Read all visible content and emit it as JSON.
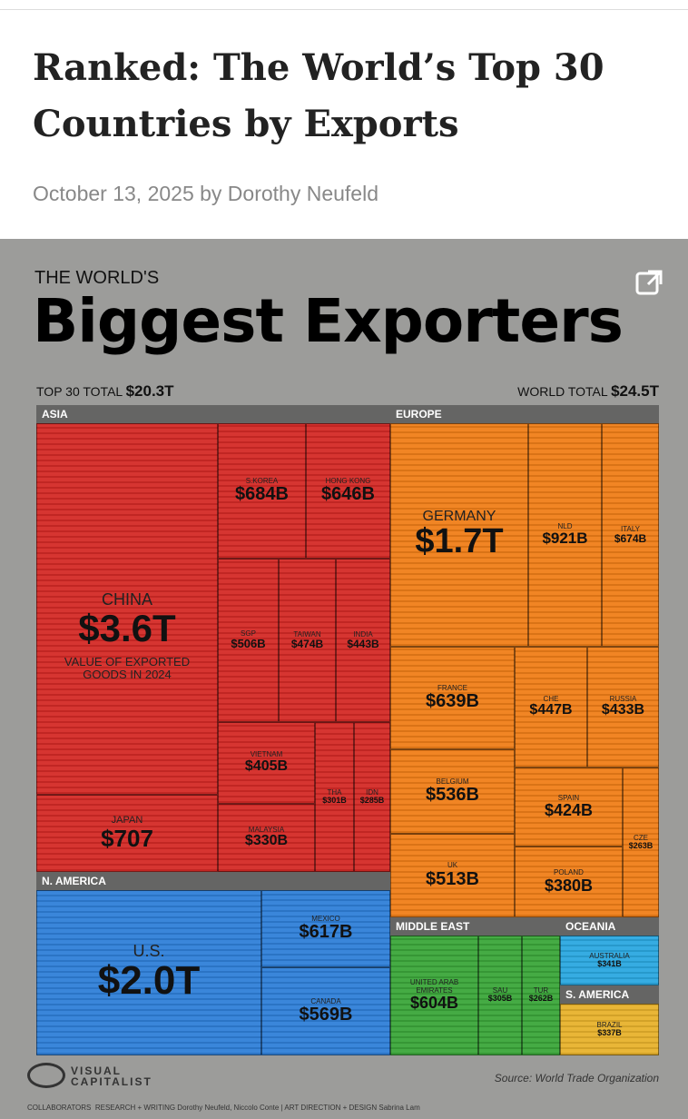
{
  "article": {
    "title": "Ranked: The World’s Top 30 Countries by Exports",
    "byline": "October 13, 2025 by Dorothy Neufeld"
  },
  "infographic": {
    "kicker": "THE WORLD'S",
    "title": "Biggest Exporters",
    "top_total_label": "TOP 30 TOTAL",
    "top_total": "$20.3T",
    "world_total_label": "WORLD TOTAL",
    "world_total": "$24.5T",
    "regions": [
      {
        "name": "ASIA",
        "color": "#d42a26",
        "countries": [
          {
            "name": "CHINA",
            "value": "$3.6T",
            "note": "VALUE OF EXPORTED GOODS IN 2024"
          },
          {
            "name": "S.KOREA",
            "value": "$684B"
          },
          {
            "name": "HONG KONG",
            "value": "$646B"
          },
          {
            "name": "SGP",
            "value": "$506B"
          },
          {
            "name": "TAIWAN",
            "value": "$474B"
          },
          {
            "name": "INDIA",
            "value": "$443B"
          },
          {
            "name": "VIETNAM",
            "value": "$405B"
          },
          {
            "name": "MALAYSIA",
            "value": "$330B"
          },
          {
            "name": "THA",
            "value": "$301B"
          },
          {
            "name": "IDN",
            "value": "$285B"
          },
          {
            "name": "JAPAN",
            "value": "$707"
          }
        ]
      },
      {
        "name": "EUROPE",
        "color": "#f07e18",
        "countries": [
          {
            "name": "GERMANY",
            "value": "$1.7T"
          },
          {
            "name": "NLD",
            "value": "$921B"
          },
          {
            "name": "ITALY",
            "value": "$674B"
          },
          {
            "name": "FRANCE",
            "value": "$639B"
          },
          {
            "name": "CHE",
            "value": "$447B"
          },
          {
            "name": "RUSSIA",
            "value": "$433B"
          },
          {
            "name": "BELGIUM",
            "value": "$536B"
          },
          {
            "name": "UK",
            "value": "$513B"
          },
          {
            "name": "SPAIN",
            "value": "$424B"
          },
          {
            "name": "POLAND",
            "value": "$380B"
          },
          {
            "name": "CZE",
            "value": "$263B"
          }
        ]
      },
      {
        "name": "N. AMERICA",
        "color": "#2f7fd8",
        "countries": [
          {
            "name": "U.S.",
            "value": "$2.0T"
          },
          {
            "name": "MEXICO",
            "value": "$617B"
          },
          {
            "name": "CANADA",
            "value": "$569B"
          }
        ]
      },
      {
        "name": "MIDDLE EAST",
        "color": "#3ba63a",
        "countries": [
          {
            "name": "UNITED ARAB EMIRATES",
            "value": "$604B"
          },
          {
            "name": "SAU",
            "value": "$305B"
          },
          {
            "name": "TUR",
            "value": "$262B"
          }
        ]
      },
      {
        "name": "OCEANIA",
        "color": "#2ba8e0",
        "countries": [
          {
            "name": "AUSTRALIA",
            "value": "$341B"
          }
        ]
      },
      {
        "name": "S. AMERICA",
        "color": "#e8b22c",
        "countries": [
          {
            "name": "BRAZIL",
            "value": "$337B"
          }
        ]
      }
    ],
    "brand": "VISUAL CAPITALIST",
    "source": "Source: World Trade Organization",
    "credits": "COLLABORATORS  RESEARCH + WRITING Dorothy Neufeld, Niccolo Conte | ART DIRECTION + DESIGN Sabrina Lam"
  }
}
